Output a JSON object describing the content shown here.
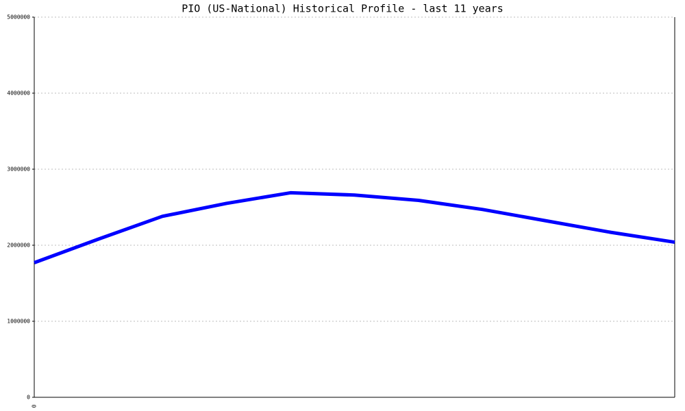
{
  "chart_data": {
    "type": "line",
    "title": "PIO (US-National) Historical Profile - last 11 years",
    "categories": [
      "0",
      null,
      null,
      null,
      null,
      null,
      null,
      null,
      null,
      null,
      null
    ],
    "series": [
      {
        "color": "#0000ff",
        "values": [
          1770000,
          2080000,
          2380000,
          2550000,
          2690000,
          2660000,
          2590000,
          2470000,
          2320000,
          2170000,
          2040000
        ]
      }
    ],
    "ylim": [
      0,
      5000000
    ],
    "yticks": [
      0,
      1000000,
      2000000,
      3000000,
      4000000,
      5000000
    ],
    "grid": true
  }
}
